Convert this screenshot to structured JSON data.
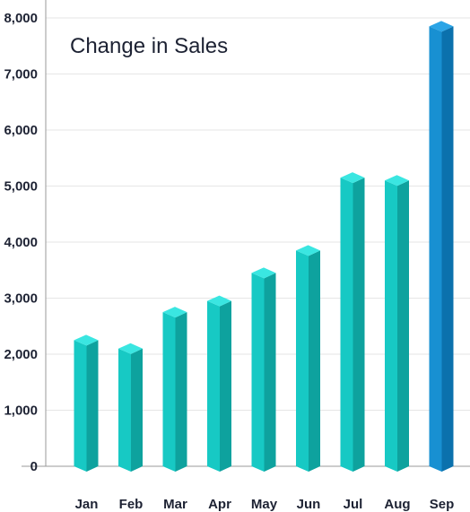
{
  "chart_data": {
    "type": "bar",
    "title": "Change in Sales",
    "xlabel": "",
    "ylabel": "",
    "categories": [
      "Jan",
      "Feb",
      "Mar",
      "Apr",
      "May",
      "Jun",
      "Jul",
      "Aug",
      "Sep"
    ],
    "values": [
      2250,
      2100,
      2750,
      2950,
      3450,
      3850,
      5150,
      5100,
      7850
    ],
    "highlight_index": 8,
    "ylim": [
      0,
      8000
    ],
    "yticks": [
      "0",
      "1,000",
      "2,000",
      "3,000",
      "4,000",
      "5,000",
      "6,000",
      "7,000",
      "8,000"
    ],
    "grid": true,
    "legend": "none",
    "colors": {
      "bar_front": "#17c9c4",
      "bar_side": "#0ea29e",
      "bar_top": "#3ae6e1",
      "highlight_front": "#1890d2",
      "highlight_side": "#0b71ad",
      "highlight_top": "#2aa4e6",
      "grid": "#e6e6e6",
      "axis": "#9a9a9a"
    }
  }
}
